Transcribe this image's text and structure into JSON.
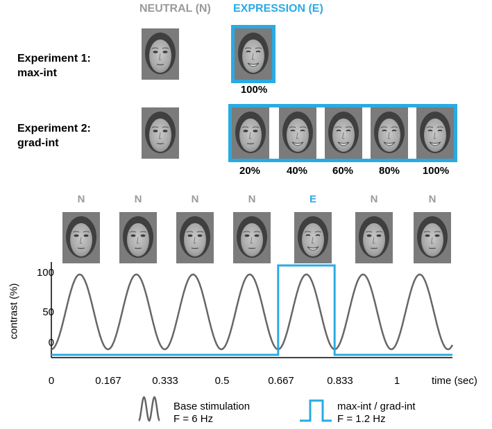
{
  "headers": {
    "neutral": "NEUTRAL (N)",
    "expression": "EXPRESSION (E)"
  },
  "experiments": [
    {
      "title": "Experiment 1:",
      "subtitle": "max-int",
      "levels": [
        "100%"
      ]
    },
    {
      "title": "Experiment 2:",
      "subtitle": "grad-int",
      "levels": [
        "20%",
        "40%",
        "60%",
        "80%",
        "100%"
      ]
    }
  ],
  "sequence": [
    "N",
    "N",
    "N",
    "N",
    "E",
    "N",
    "N"
  ],
  "colors": {
    "accent": "#29abe2",
    "neutral_text": "#9a9a9a",
    "sine": "#666666"
  },
  "chart_data": {
    "type": "line",
    "ylabel": "contrast (%)",
    "xlabel": "time (sec)",
    "y_ticks": [
      "100",
      "50",
      "0"
    ],
    "x_ticks": [
      "0",
      "0.167",
      "0.333",
      "0.5",
      "0.667",
      "0.833",
      "1"
    ],
    "xlim": [
      0,
      1.2
    ],
    "series": [
      {
        "name": "Base stimulation",
        "frequency_label": "F = 6 Hz",
        "frequency_hz": 6
      },
      {
        "name": "max-int / grad-int",
        "frequency_label": "F = 1.2 Hz",
        "frequency_hz": 1.2,
        "on_interval": [
          0.667,
          0.833
        ]
      }
    ]
  },
  "legend": {
    "base_label": "Base stimulation",
    "base_freq": "F = 6 Hz",
    "mod_label": "max-int / grad-int",
    "mod_freq": "F = 1.2 Hz"
  }
}
